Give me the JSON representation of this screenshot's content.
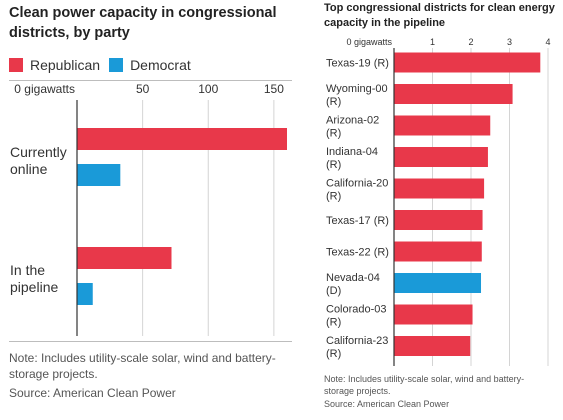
{
  "colors": {
    "republican": "#e8384a",
    "democrat": "#1a9ad8",
    "grid": "#d4d4d4",
    "axis": "#333333",
    "text": "#333333"
  },
  "left_panel": {
    "title": "Clean power capacity in congressional districts, by party",
    "legend": [
      {
        "label": "Republican",
        "color": "#e8384a"
      },
      {
        "label": "Democrat",
        "color": "#1a9ad8"
      }
    ],
    "note": "Note: Includes utility-scale solar, wind and battery-storage projects.",
    "source": "Source: American Clean Power"
  },
  "right_panel": {
    "title": "Top congressional districts for clean energy capacity in the pipeline",
    "note": "Note: Includes utility-scale solar, wind and battery-storage projects.",
    "source": "Source: American Clean Power"
  },
  "chart_data": [
    {
      "type": "bar",
      "orientation": "horizontal",
      "title": "Clean power capacity in congressional districts, by party",
      "categories": [
        "Currently online",
        "In the pipeline"
      ],
      "series": [
        {
          "name": "Republican",
          "color": "#e8384a",
          "values": [
            160,
            72
          ]
        },
        {
          "name": "Democrat",
          "color": "#1a9ad8",
          "values": [
            33,
            12
          ]
        }
      ],
      "xlim": [
        0,
        160
      ],
      "xticks": [
        0,
        50,
        100,
        150
      ],
      "xtick_labels": [
        "0 gigawatts",
        "50",
        "100",
        "150"
      ],
      "grid": true,
      "legend": "top-left"
    },
    {
      "type": "bar",
      "orientation": "horizontal",
      "title": "Top congressional districts for clean energy capacity in the pipeline",
      "categories": [
        "Texas-19 (R)",
        "Wyoming-00 (R)",
        "Arizona-02 (R)",
        "Indiana-04 (R)",
        "California-20 (R)",
        "Texas-17 (R)",
        "Texas-22 (R)",
        "Nevada-04 (D)",
        "Colorado-03 (R)",
        "California-23 (R)"
      ],
      "party": [
        "R",
        "R",
        "R",
        "R",
        "R",
        "R",
        "R",
        "D",
        "R",
        "R"
      ],
      "values": [
        3.8,
        3.08,
        2.5,
        2.44,
        2.34,
        2.3,
        2.28,
        2.26,
        2.04,
        1.98
      ],
      "xlim": [
        0,
        4
      ],
      "xticks": [
        0,
        1,
        2,
        3,
        4
      ],
      "xtick_labels": [
        "0 gigawatts",
        "1",
        "2",
        "3",
        "4"
      ],
      "grid": true
    }
  ]
}
